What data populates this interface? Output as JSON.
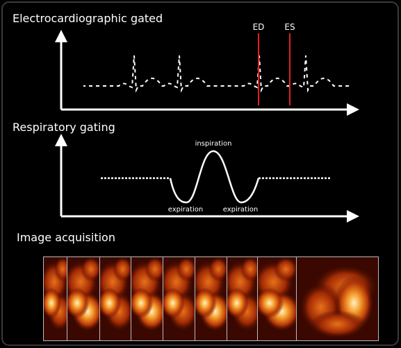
{
  "ecg": {
    "title": "Electrocardiographic gated",
    "markers": [
      "ED",
      "ES"
    ]
  },
  "respiratory": {
    "title": "Respiratory gating",
    "peak_label": "inspiration",
    "trough_labels": [
      "expiration",
      "expiration"
    ]
  },
  "acquisition": {
    "title": "Image acquisition"
  }
}
